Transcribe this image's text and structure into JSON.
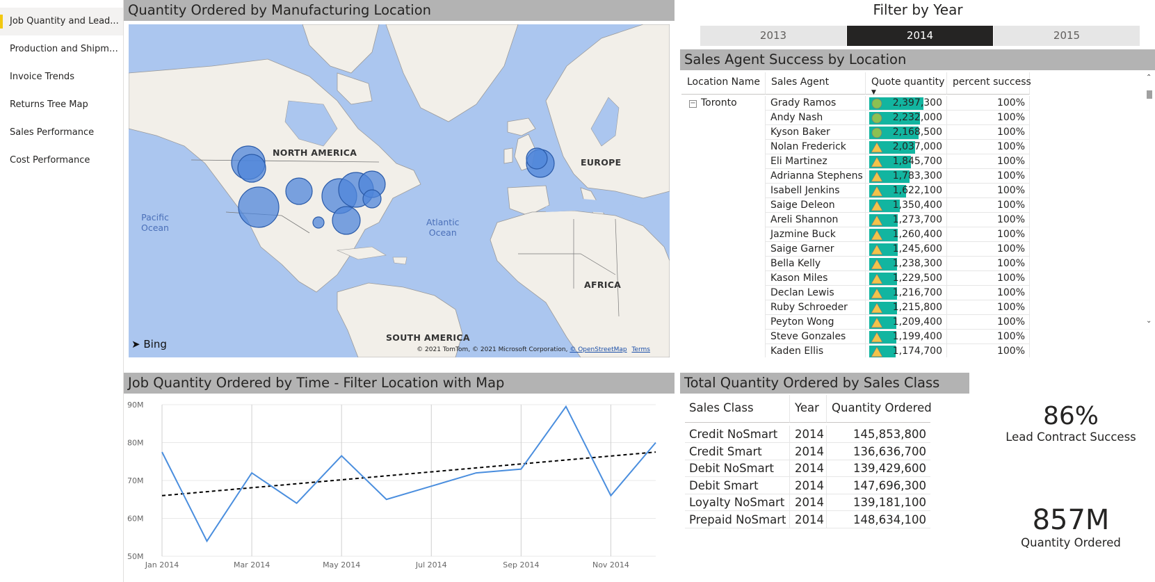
{
  "nav": {
    "items": [
      {
        "label": "Job Quantity and Lead...",
        "active": true
      },
      {
        "label": "Production and Shipme...",
        "active": false
      },
      {
        "label": "Invoice Trends",
        "active": false
      },
      {
        "label": "Returns Tree Map",
        "active": false
      },
      {
        "label": "Sales Performance",
        "active": false
      },
      {
        "label": "Cost Performance",
        "active": false
      }
    ]
  },
  "map_panel": {
    "title": "Quantity Ordered by Manufacturing Location",
    "labels": {
      "north_america": "NORTH AMERICA",
      "europe": "EUROPE",
      "africa": "AFRICA",
      "south_america": "SOUTH AMERICA",
      "pacific": "Pacific\nOcean",
      "atlantic": "Atlantic\nOcean"
    },
    "brand": "Bing",
    "copyright_prefix": "© 2021 TomTom, © 2021 Microsoft Corporation, ",
    "copyright_link": "© OpenStreetMap",
    "terms": "Terms",
    "colors": {
      "land": "#f2efe9",
      "water": "#abc6ef",
      "bubble": "#4f86d9",
      "bubble_stroke": "#2a5aa8"
    }
  },
  "year_filter": {
    "title": "Filter by Year",
    "years": [
      {
        "label": "2013",
        "selected": false
      },
      {
        "label": "2014",
        "selected": true
      },
      {
        "label": "2015",
        "selected": false
      }
    ]
  },
  "agent_panel": {
    "title": "Sales Agent Success by Location",
    "columns": [
      "Location Name",
      "Sales Agent",
      "Quote quantity",
      "percent success"
    ],
    "location": "Toronto",
    "expander_symbol": "−",
    "rows": [
      {
        "agent": "Grady Ramos",
        "qty": 2397300,
        "qty_label": "2,397,300",
        "pct": "100%",
        "kpi": "circle"
      },
      {
        "agent": "Andy Nash",
        "qty": 2232000,
        "qty_label": "2,232,000",
        "pct": "100%",
        "kpi": "circle"
      },
      {
        "agent": "Kyson Baker",
        "qty": 2168500,
        "qty_label": "2,168,500",
        "pct": "100%",
        "kpi": "circle"
      },
      {
        "agent": "Nolan Frederick",
        "qty": 2037000,
        "qty_label": "2,037,000",
        "pct": "100%",
        "kpi": "triangle"
      },
      {
        "agent": "Eli Martinez",
        "qty": 1845700,
        "qty_label": "1,845,700",
        "pct": "100%",
        "kpi": "triangle"
      },
      {
        "agent": "Adrianna Stephens",
        "qty": 1783300,
        "qty_label": "1,783,300",
        "pct": "100%",
        "kpi": "triangle"
      },
      {
        "agent": "Isabell Jenkins",
        "qty": 1622100,
        "qty_label": "1,622,100",
        "pct": "100%",
        "kpi": "triangle"
      },
      {
        "agent": "Saige Deleon",
        "qty": 1350400,
        "qty_label": "1,350,400",
        "pct": "100%",
        "kpi": "triangle"
      },
      {
        "agent": "Areli Shannon",
        "qty": 1273700,
        "qty_label": "1,273,700",
        "pct": "100%",
        "kpi": "triangle"
      },
      {
        "agent": "Jazmine Buck",
        "qty": 1260400,
        "qty_label": "1,260,400",
        "pct": "100%",
        "kpi": "triangle"
      },
      {
        "agent": "Saige Garner",
        "qty": 1245600,
        "qty_label": "1,245,600",
        "pct": "100%",
        "kpi": "triangle"
      },
      {
        "agent": "Bella Kelly",
        "qty": 1238300,
        "qty_label": "1,238,300",
        "pct": "100%",
        "kpi": "triangle"
      },
      {
        "agent": "Kason Miles",
        "qty": 1229500,
        "qty_label": "1,229,500",
        "pct": "100%",
        "kpi": "triangle"
      },
      {
        "agent": "Declan Lewis",
        "qty": 1216700,
        "qty_label": "1,216,700",
        "pct": "100%",
        "kpi": "triangle"
      },
      {
        "agent": "Ruby Schroeder",
        "qty": 1215800,
        "qty_label": "1,215,800",
        "pct": "100%",
        "kpi": "triangle"
      },
      {
        "agent": "Peyton Wong",
        "qty": 1209400,
        "qty_label": "1,209,400",
        "pct": "100%",
        "kpi": "triangle"
      },
      {
        "agent": "Steve Gonzales",
        "qty": 1199400,
        "qty_label": "1,199,400",
        "pct": "100%",
        "kpi": "triangle"
      },
      {
        "agent": "Kaden Ellis",
        "qty": 1174700,
        "qty_label": "1,174,700",
        "pct": "100%",
        "kpi": "triangle"
      }
    ],
    "colors": {
      "bar": "#12b5a0",
      "circle": "#8cc152",
      "triangle": "#f2c34a"
    }
  },
  "line_panel": {
    "title": "Job Quantity Ordered by Time - Filter Location with Map"
  },
  "chart_data": {
    "type": "line",
    "title": "Job Quantity Ordered by Time - Filter Location with Map",
    "x": [
      "Jan 2014",
      "Feb 2014",
      "Mar 2014",
      "Apr 2014",
      "May 2014",
      "Jun 2014",
      "Jul 2014",
      "Aug 2014",
      "Sep 2014",
      "Oct 2014",
      "Nov 2014",
      "Dec 2014"
    ],
    "x_tick_labels": [
      "Jan 2014",
      "Mar 2014",
      "May 2014",
      "Jul 2014",
      "Sep 2014",
      "Nov 2014"
    ],
    "y_tick_labels": [
      "50M",
      "60M",
      "70M",
      "80M",
      "90M"
    ],
    "ylim": [
      50,
      90
    ],
    "series": [
      {
        "values": [
          77.5,
          54,
          72,
          64,
          76.5,
          65,
          68.5,
          72,
          73,
          89.5,
          66,
          80
        ],
        "color": "#4a8ede"
      }
    ],
    "trendline": {
      "start": 66,
      "end": 77.5,
      "color": "#000000",
      "style": "dashed"
    },
    "grid": true
  },
  "class_panel": {
    "title": "Total Quantity Ordered by Sales Class",
    "columns": [
      "Sales Class",
      "Year",
      "Quantity Ordered"
    ],
    "rows": [
      {
        "cls": "Credit NoSmart",
        "year": "2014",
        "qty": "145,853,800"
      },
      {
        "cls": "Credit Smart",
        "year": "2014",
        "qty": "136,636,700"
      },
      {
        "cls": "Debit NoSmart",
        "year": "2014",
        "qty": "139,429,600"
      },
      {
        "cls": "Debit Smart",
        "year": "2014",
        "qty": "147,696,300"
      },
      {
        "cls": "Loyalty NoSmart",
        "year": "2014",
        "qty": "139,181,100"
      },
      {
        "cls": "Prepaid NoSmart",
        "year": "2014",
        "qty": "148,634,100"
      }
    ]
  },
  "cards": {
    "success": {
      "value": "86%",
      "label": "Lead Contract Success"
    },
    "quantity": {
      "value": "857M",
      "label": "Quantity Ordered"
    }
  }
}
